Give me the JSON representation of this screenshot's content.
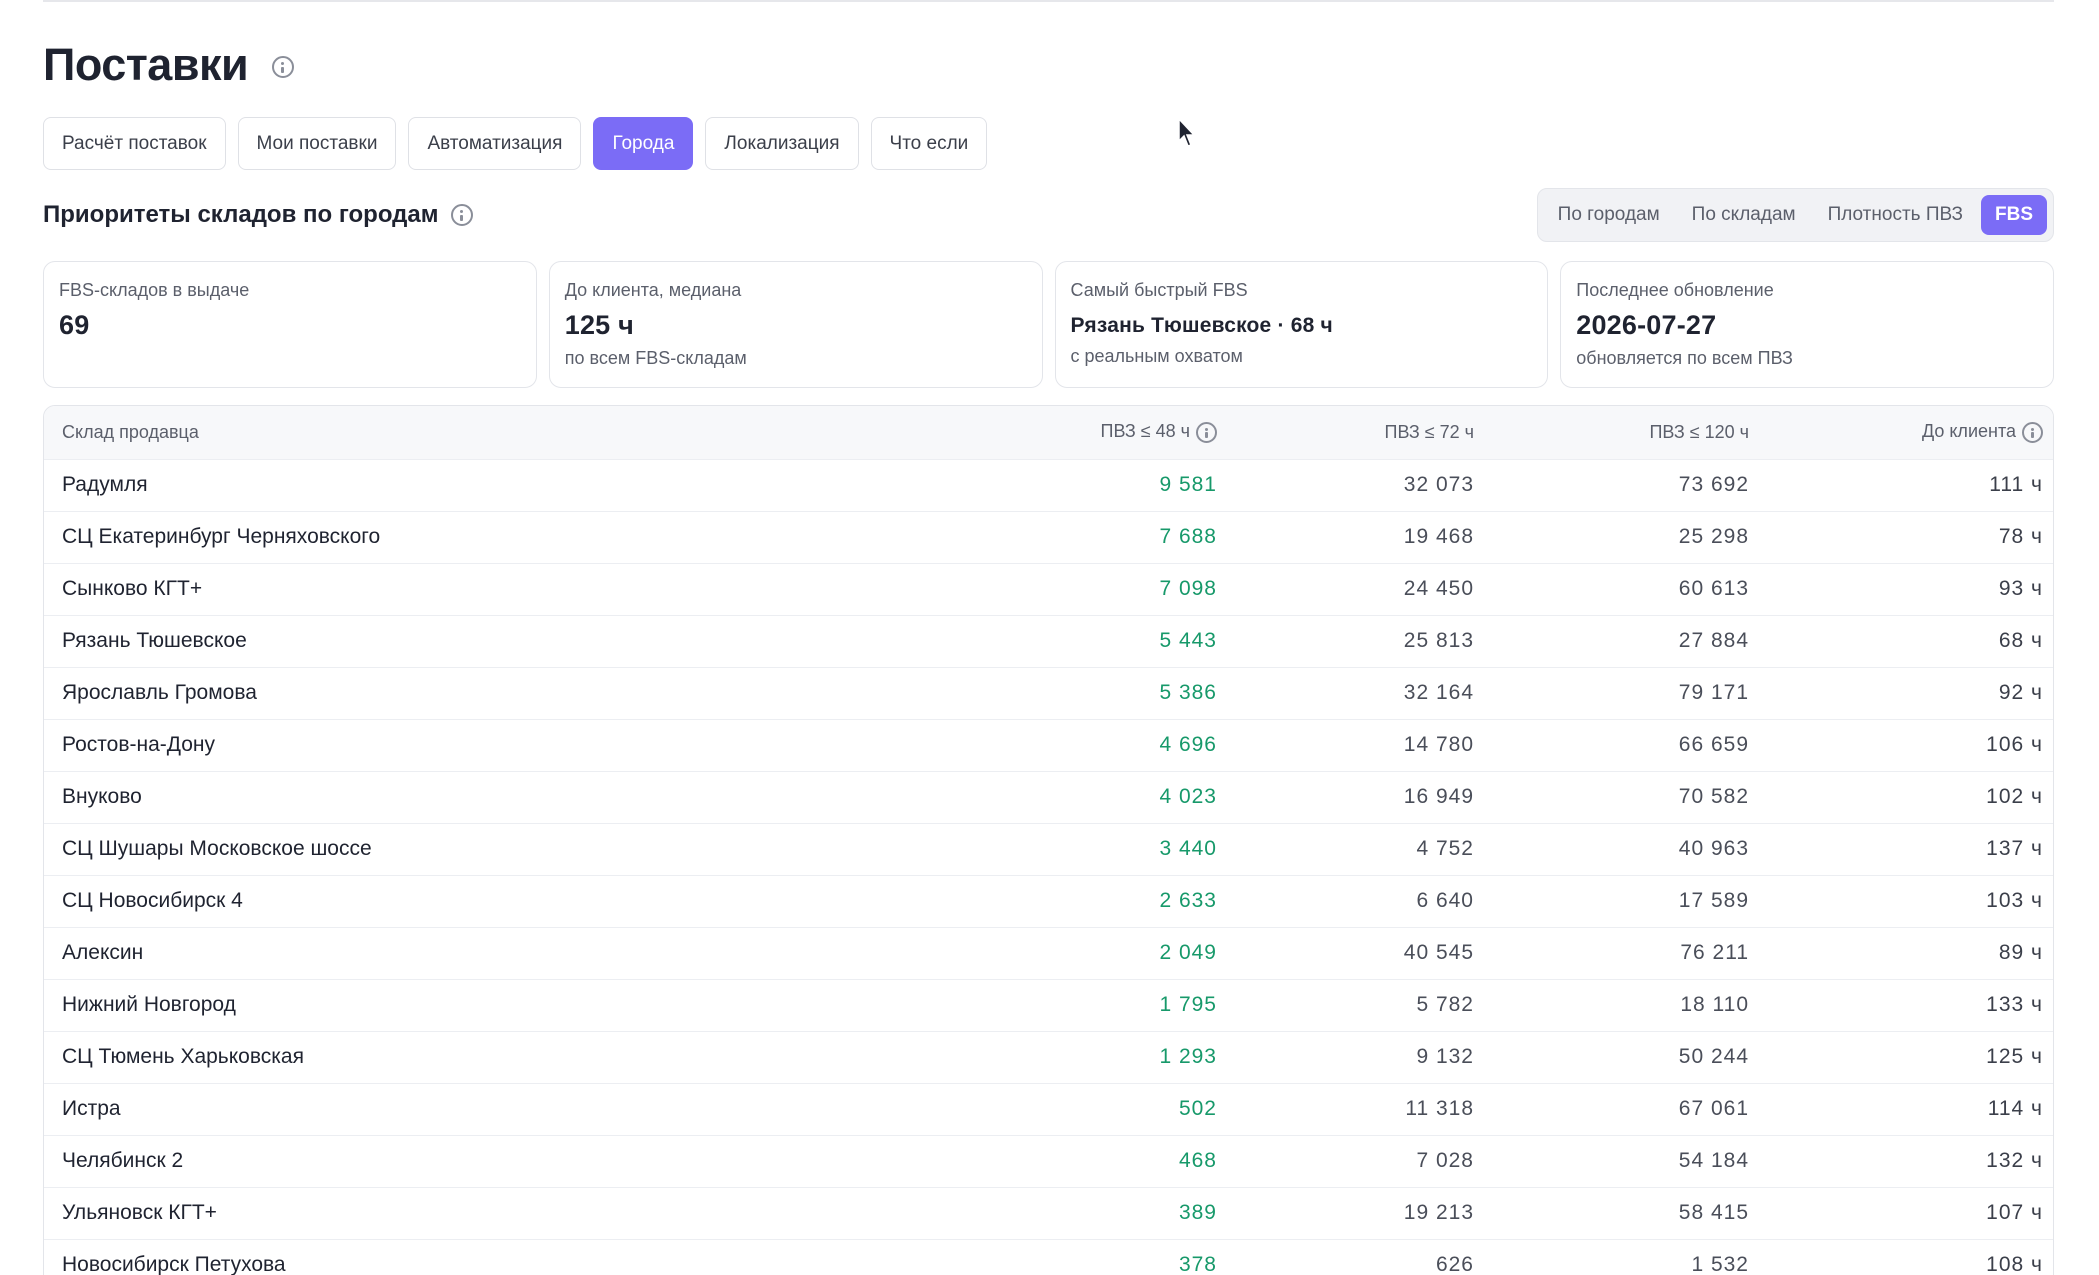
{
  "page": {
    "title": "Поставки",
    "tabs": [
      {
        "label": "Расчёт поставок",
        "active": false
      },
      {
        "label": "Мои поставки",
        "active": false
      },
      {
        "label": "Автоматизация",
        "active": false
      },
      {
        "label": "Города",
        "active": true
      },
      {
        "label": "Локализация",
        "active": false
      },
      {
        "label": "Что если",
        "active": false
      }
    ]
  },
  "section": {
    "title": "Приоритеты складов по городам",
    "view_toggle": [
      {
        "label": "По городам",
        "active": false
      },
      {
        "label": "По складам",
        "active": false
      },
      {
        "label": "Плотность ПВЗ",
        "active": false
      },
      {
        "label": "FBS",
        "active": true
      }
    ]
  },
  "cards": [
    {
      "label": "FBS-складов в выдаче",
      "value": "69",
      "sub": ""
    },
    {
      "label": "До клиента, медиана",
      "value": "125 ч",
      "sub": "по всем FBS-складам"
    },
    {
      "label": "Самый быстрый FBS",
      "value": "Рязань Тюшевское · 68 ч",
      "sub": "с реальным охватом"
    },
    {
      "label": "Последнее обновление",
      "value": "2026-07-27",
      "sub": "обновляется по всем ПВЗ"
    }
  ],
  "table": {
    "headers": [
      "Склад продавца",
      "ПВЗ ≤ 48 ч",
      "ПВЗ ≤ 72 ч",
      "ПВЗ ≤ 120 ч",
      "До клиента"
    ],
    "rows": [
      [
        "Радумля",
        "9 581",
        "32 073",
        "73 692",
        "111 ч"
      ],
      [
        "СЦ Екатеринбург Черняховского",
        "7 688",
        "19 468",
        "25 298",
        "78 ч"
      ],
      [
        "Сынково КГТ+",
        "7 098",
        "24 450",
        "60 613",
        "93 ч"
      ],
      [
        "Рязань Тюшевское",
        "5 443",
        "25 813",
        "27 884",
        "68 ч"
      ],
      [
        "Ярославль Громова",
        "5 386",
        "32 164",
        "79 171",
        "92 ч"
      ],
      [
        "Ростов-на-Дону",
        "4 696",
        "14 780",
        "66 659",
        "106 ч"
      ],
      [
        "Внуково",
        "4 023",
        "16 949",
        "70 582",
        "102 ч"
      ],
      [
        "СЦ Шушары Московское шоссе",
        "3 440",
        "4 752",
        "40 963",
        "137 ч"
      ],
      [
        "СЦ Новосибирск 4",
        "2 633",
        "6 640",
        "17 589",
        "103 ч"
      ],
      [
        "Алексин",
        "2 049",
        "40 545",
        "76 211",
        "89 ч"
      ],
      [
        "Нижний Новгород",
        "1 795",
        "5 782",
        "18 110",
        "133 ч"
      ],
      [
        "СЦ Тюмень Харьковская",
        "1 293",
        "9 132",
        "50 244",
        "125 ч"
      ],
      [
        "Истра",
        "502",
        "11 318",
        "67 061",
        "114 ч"
      ],
      [
        "Челябинск 2",
        "468",
        "7 028",
        "54 184",
        "132 ч"
      ],
      [
        "Ульяновск КГТ+",
        "389",
        "19 213",
        "58 415",
        "107 ч"
      ],
      [
        "Новосибирск Петухова",
        "378",
        "626",
        "1 532",
        "108 ч"
      ]
    ]
  },
  "colors": {
    "accent": "#7b6cf6",
    "positive": "#17996a"
  },
  "icons": [
    "info-icon",
    "cursor-icon"
  ]
}
